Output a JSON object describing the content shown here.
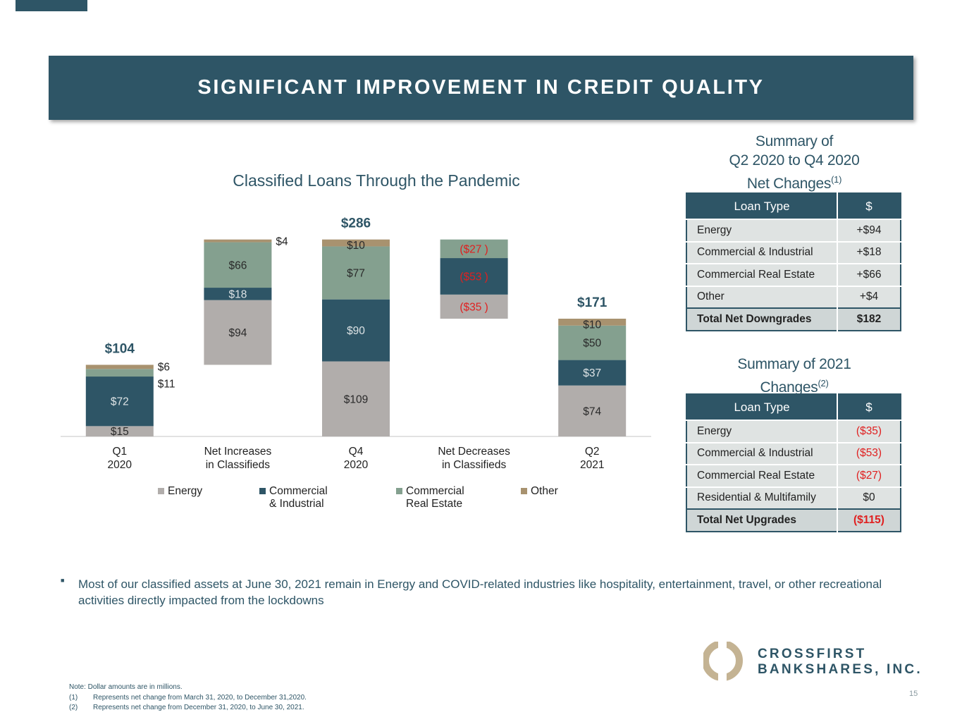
{
  "header": {
    "title": "SIGNIFICANT IMPROVEMENT IN CREDIT QUALITY"
  },
  "chart_data": {
    "type": "waterfall-stacked",
    "title": "Classified Loans Through the Pandemic",
    "categories": [
      [
        "Q1",
        "2020"
      ],
      [
        "Net Increases",
        "in Classifieds"
      ],
      [
        "Q4",
        "2020"
      ],
      [
        "Net Decreases",
        "in Classifieds"
      ],
      [
        "Q2",
        "2021"
      ]
    ],
    "series": [
      {
        "name": "Energy",
        "color": "#b1adab",
        "values": [
          15,
          94,
          109,
          -35,
          74
        ],
        "value_labels": [
          "$15",
          "$94",
          "$109",
          "($35 )",
          "$74"
        ]
      },
      {
        "name": "Commercial & Industrial",
        "color": "#2e5566",
        "values": [
          72,
          18,
          90,
          -53,
          37
        ],
        "value_labels": [
          "$72",
          "$18",
          "$90",
          "($53 )",
          "$37"
        ]
      },
      {
        "name": "Commercial Real Estate",
        "color": "#84a08f",
        "values": [
          11,
          66,
          77,
          -27,
          50
        ],
        "value_labels": [
          "$11",
          "$66",
          "$77",
          "($27 )",
          "$50"
        ]
      },
      {
        "name": "Other",
        "color": "#a8926f",
        "values": [
          6,
          4,
          10,
          null,
          10
        ],
        "value_labels": [
          "$6",
          "$4",
          "$10",
          null,
          "$10"
        ]
      }
    ],
    "totals": [
      104,
      null,
      286,
      null,
      171
    ],
    "total_labels": [
      "$104",
      null,
      "$286",
      null,
      "$171"
    ],
    "ylim": [
      0,
      300
    ],
    "negative_color": "#e02020"
  },
  "table1": {
    "title": [
      "Summary of",
      "Q2 2020 to Q4 2020",
      "Net Changes"
    ],
    "title_note": "(1)",
    "header": [
      "Loan Type",
      "$"
    ],
    "rows": [
      [
        "Energy",
        "+$94"
      ],
      [
        "Commercial & Industrial",
        "+$18"
      ],
      [
        "Commercial Real Estate",
        "+$66"
      ],
      [
        "Other",
        "+$4"
      ]
    ],
    "total": [
      "Total Net Downgrades",
      "$182"
    ]
  },
  "table2": {
    "title": [
      "Summary of 2021",
      "Changes"
    ],
    "title_note": "(2)",
    "header": [
      "Loan Type",
      "$"
    ],
    "rows": [
      [
        "Energy",
        "($35)"
      ],
      [
        "Commercial & Industrial",
        "($53)"
      ],
      [
        "Commercial Real Estate",
        "($27)"
      ],
      [
        "Residential & Multifamily",
        "$0"
      ]
    ],
    "total": [
      "Total Net Upgrades",
      "($115)"
    ]
  },
  "bullet": "Most of our classified assets at June 30, 2021 remain in Energy and COVID-related industries like hospitality, entertainment, travel, or other recreational activities directly impacted from the lockdowns",
  "footnotes": [
    "Note: Dollar amounts are in millions.",
    [
      "(1)",
      "Represents net change from March 31, 2020, to December 31,2020."
    ],
    [
      "(2)",
      "Represents net change from December 31, 2020, to June 30, 2021."
    ]
  ],
  "logo": [
    "CROSSFIRST",
    "BANKSHARES, INC."
  ],
  "page_number": "15"
}
